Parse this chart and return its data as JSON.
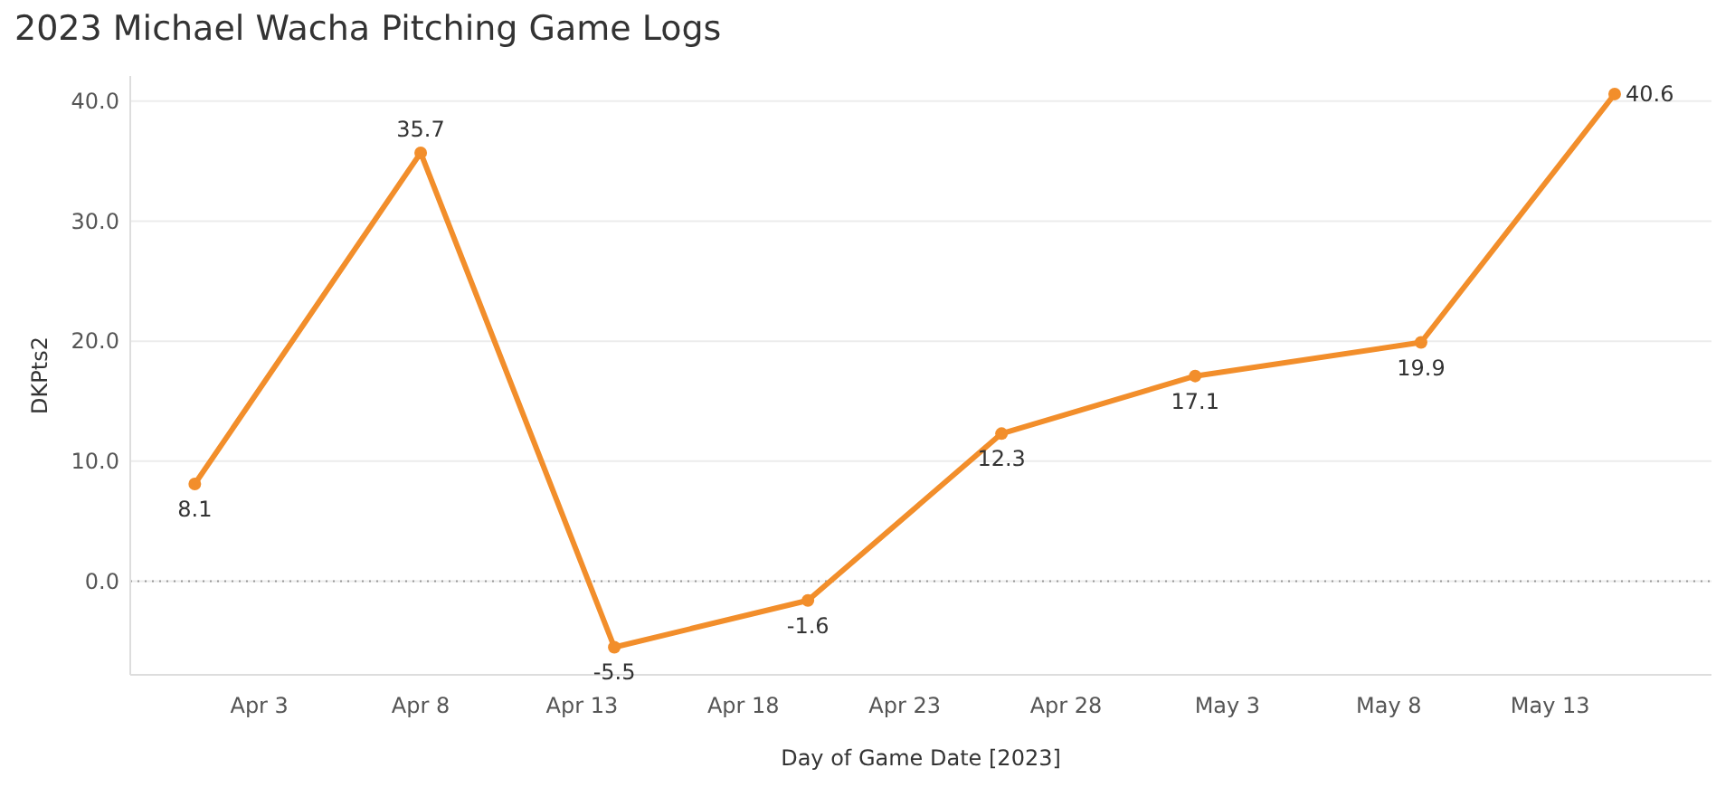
{
  "chart_data": {
    "type": "line",
    "title": "2023 Michael Wacha Pitching Game Logs",
    "xlabel": "Day of Game Date [2023]",
    "ylabel": "DKPts2",
    "x": [
      "2023-04-01",
      "2023-04-08",
      "2023-04-14",
      "2023-04-20",
      "2023-04-26",
      "2023-05-02",
      "2023-05-09",
      "2023-05-15"
    ],
    "series": [
      {
        "color": "#f28e2b",
        "values": [
          8.1,
          35.7,
          -5.5,
          -1.6,
          12.3,
          17.1,
          19.9,
          40.6
        ]
      }
    ],
    "xlim": [
      "2023-03-30",
      "2023-05-18"
    ],
    "xticks": [
      {
        "value": "2023-04-03",
        "label": "Apr 3"
      },
      {
        "value": "2023-04-08",
        "label": "Apr 8"
      },
      {
        "value": "2023-04-13",
        "label": "Apr 13"
      },
      {
        "value": "2023-04-18",
        "label": "Apr 18"
      },
      {
        "value": "2023-04-23",
        "label": "Apr 23"
      },
      {
        "value": "2023-04-28",
        "label": "Apr 28"
      },
      {
        "value": "2023-05-03",
        "label": "May 3"
      },
      {
        "value": "2023-05-08",
        "label": "May 8"
      },
      {
        "value": "2023-05-13",
        "label": "May 13"
      }
    ],
    "ylim": [
      -7.8,
      42.1
    ],
    "yticks": [
      {
        "value": 0,
        "label": "0.0"
      },
      {
        "value": 10,
        "label": "10.0"
      },
      {
        "value": 20,
        "label": "20.0"
      },
      {
        "value": 30,
        "label": "30.0"
      },
      {
        "value": 40,
        "label": "40.0"
      }
    ],
    "ref_lines": [
      {
        "axis": "y",
        "value": 0,
        "line_style": "dotted",
        "color": "#999999"
      }
    ],
    "grid": "y",
    "data_labels": true,
    "marker": "circle",
    "line_style": "solid"
  }
}
